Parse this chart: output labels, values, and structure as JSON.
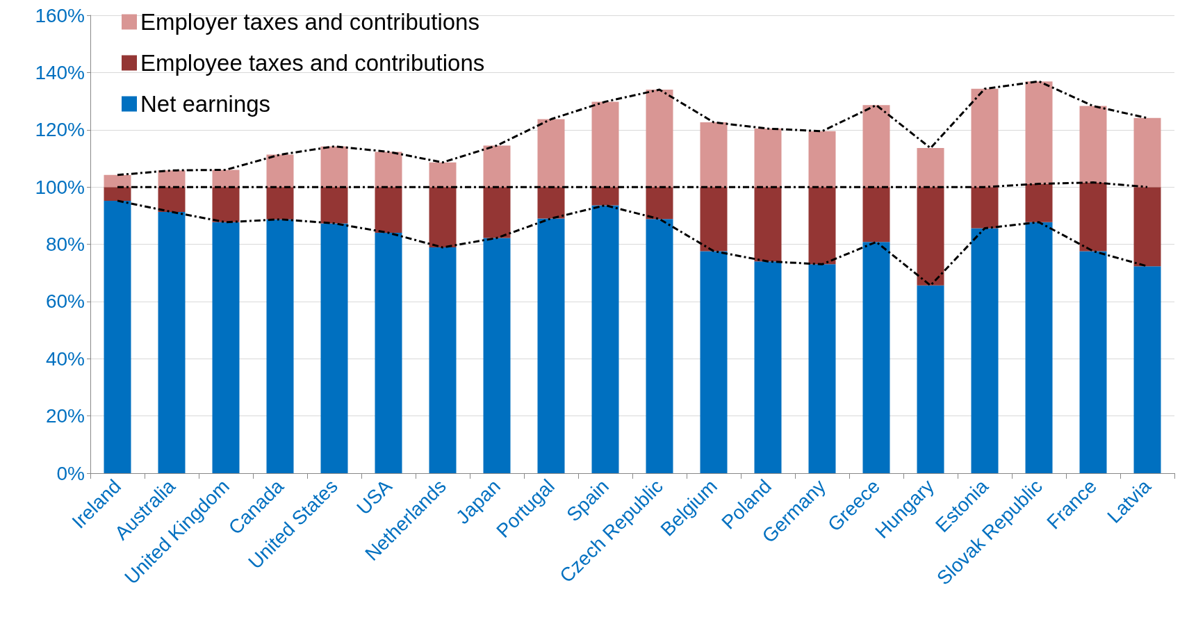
{
  "chart_data": {
    "type": "bar",
    "stacked": true,
    "categories": [
      "Ireland",
      "Australia",
      "United Kingdom",
      "Canada",
      "United States",
      "USA",
      "Netherlands",
      "Japan",
      "Portugal",
      "Spain",
      "Czech Republic",
      "Belgium",
      "Poland",
      "Germany",
      "Greece",
      "Hungary",
      "Estonia",
      "Slovak Republic",
      "France",
      "Latvia"
    ],
    "series": [
      {
        "name": "Net earnings",
        "color": "#0070c0",
        "values": [
          95.2,
          91.3,
          87.7,
          88.7,
          87.3,
          84.0,
          78.9,
          82.2,
          89.0,
          93.6,
          88.8,
          77.6,
          74.0,
          73.0,
          80.8,
          65.6,
          85.6,
          87.7,
          77.6,
          72.3
        ]
      },
      {
        "name": "Employee taxes and contributions",
        "color": "#943634",
        "values": [
          4.8,
          8.7,
          12.3,
          11.3,
          12.7,
          16.0,
          21.1,
          17.8,
          11.0,
          6.4,
          11.2,
          22.4,
          26.0,
          27.0,
          19.2,
          34.4,
          14.4,
          13.4,
          24.0,
          27.7
        ]
      },
      {
        "name": "Employer taxes and contributions",
        "color": "#d99694",
        "values": [
          4.2,
          5.8,
          6.0,
          11.3,
          14.2,
          12.3,
          8.6,
          14.5,
          23.7,
          29.8,
          34.0,
          22.6,
          20.4,
          19.5,
          28.6,
          13.6,
          34.3,
          35.8,
          26.7,
          24.1
        ]
      },
      {
        "type": "line",
        "color": "#000000",
        "line_style": "dashed",
        "values": [
          95.2,
          91.3,
          87.7,
          88.7,
          87.3,
          84.0,
          78.9,
          82.2,
          89.0,
          93.6,
          88.8,
          77.6,
          74.0,
          73.0,
          80.8,
          65.6,
          85.6,
          87.7,
          77.6,
          72.3
        ]
      },
      {
        "type": "line",
        "color": "#000000",
        "line_style": "dashed",
        "values": [
          100,
          100,
          100,
          100,
          100,
          100,
          100,
          100,
          100,
          100,
          100,
          100,
          100,
          100,
          100,
          100,
          100,
          101.1,
          101.6,
          100
        ]
      },
      {
        "type": "line",
        "color": "#000000",
        "line_style": "dashed",
        "values": [
          104.2,
          105.8,
          106.0,
          111.3,
          114.2,
          112.3,
          108.6,
          114.5,
          123.7,
          129.8,
          134.0,
          122.6,
          120.4,
          119.5,
          128.6,
          113.6,
          134.3,
          136.9,
          128.3,
          124.1
        ]
      }
    ],
    "ylim": [
      0,
      160
    ],
    "yticks": [
      {
        "value": 0,
        "label": "0%"
      },
      {
        "value": 20,
        "label": "20%"
      },
      {
        "value": 40,
        "label": "40%"
      },
      {
        "value": 60,
        "label": "60%"
      },
      {
        "value": 80,
        "label": "80%"
      },
      {
        "value": 100,
        "label": "100%"
      },
      {
        "value": 120,
        "label": "120%"
      },
      {
        "value": 140,
        "label": "140%"
      },
      {
        "value": 160,
        "label": "160%"
      }
    ],
    "grid": "y",
    "legend": "top left",
    "marker": "none"
  }
}
